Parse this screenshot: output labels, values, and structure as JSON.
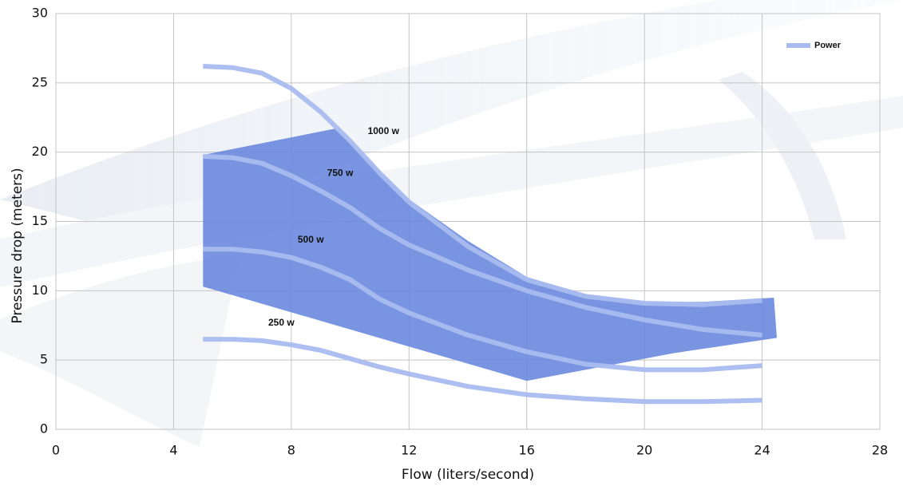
{
  "chart_data": {
    "type": "line",
    "x_label": "Flow (liters/second)",
    "y_label": "Pressure drop (meters)",
    "x": [
      5,
      6,
      7,
      8,
      9,
      10,
      11,
      12,
      14,
      16,
      18,
      20,
      22,
      24
    ],
    "series": [
      {
        "name": "1000 w",
        "color": "#a9bcef",
        "values": [
          26.2,
          26.1,
          25.7,
          24.6,
          22.9,
          20.8,
          18.5,
          16.4,
          13.2,
          10.8,
          9.6,
          9.1,
          9.0,
          9.3
        ]
      },
      {
        "name": "750 w",
        "color": "#a9bcef",
        "values": [
          19.7,
          19.6,
          19.2,
          18.3,
          17.2,
          16.0,
          14.5,
          13.3,
          11.5,
          10.0,
          8.8,
          7.9,
          7.2,
          6.8
        ]
      },
      {
        "name": "500 w",
        "color": "#a9bcef",
        "values": [
          13.0,
          13.0,
          12.8,
          12.4,
          11.7,
          10.8,
          9.4,
          8.4,
          6.8,
          5.6,
          4.7,
          4.3,
          4.3,
          4.6
        ]
      },
      {
        "name": "250 w",
        "color": "#a9bcef",
        "values": [
          6.5,
          6.5,
          6.4,
          6.1,
          5.7,
          5.1,
          4.5,
          4.0,
          3.1,
          2.5,
          2.2,
          2.0,
          2.0,
          2.1
        ]
      }
    ],
    "region": {
      "color": "#6a8ade",
      "x": [
        5,
        9.5,
        12,
        14,
        16,
        18,
        20,
        22,
        24.4,
        24.5,
        21,
        16,
        5
      ],
      "y": [
        19.8,
        21.7,
        16.6,
        13.6,
        11.0,
        9.7,
        9.2,
        9.2,
        9.5,
        6.6,
        5.5,
        3.5,
        10.3
      ]
    },
    "legend": {
      "entries": [
        "Power"
      ],
      "position": "upper right",
      "color": "#a9bcef"
    },
    "xlim": [
      0,
      28
    ],
    "xticks": [
      0,
      4,
      8,
      12,
      16,
      20,
      24,
      28
    ],
    "ylim": [
      0,
      30
    ],
    "yticks": [
      0,
      5,
      10,
      15,
      20,
      25,
      30
    ],
    "grid": true
  }
}
